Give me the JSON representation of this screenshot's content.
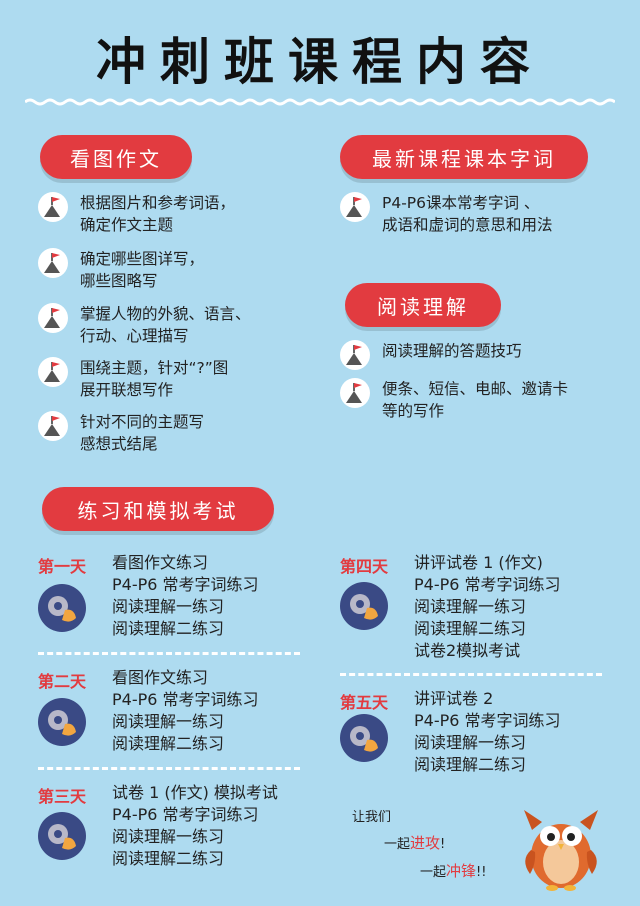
{
  "title": "冲刺班课程内容",
  "sections": {
    "writing": {
      "heading": "看图作文",
      "items": [
        [
          "根据图片和参考词语，",
          "确定作文主题"
        ],
        [
          "确定哪些图详写，",
          "哪些图略写"
        ],
        [
          "掌握人物的外貌、语言、",
          "行动、心理描写"
        ],
        [
          "围绕主题，针对“?”图",
          "展开联想写作"
        ],
        [
          "针对不同的主题写",
          "感想式结尾"
        ]
      ]
    },
    "vocab": {
      "heading": "最新课程课本字词",
      "items": [
        [
          "P4-P6课本常考字词 、",
          "成语和虚词的意思和用法"
        ]
      ]
    },
    "reading": {
      "heading": "阅读理解",
      "items": [
        [
          "阅读理解的答题技巧"
        ],
        [
          "便条、短信、电邮、邀请卡",
          "等的写作"
        ]
      ]
    },
    "practice": {
      "heading": "练习和模拟考试"
    }
  },
  "days": [
    {
      "label": "第一天",
      "lines": [
        "看图作文练习",
        "P4-P6 常考字词练习",
        "阅读理解一练习",
        "阅读理解二练习"
      ]
    },
    {
      "label": "第二天",
      "lines": [
        "看图作文练习",
        "P4-P6 常考字词练习",
        "阅读理解一练习",
        "阅读理解二练习"
      ]
    },
    {
      "label": "第三天",
      "lines": [
        "试卷 1 (作文) 模拟考试",
        "P4-P6 常考字词练习",
        "阅读理解一练习",
        "阅读理解二练习"
      ]
    },
    {
      "label": "第四天",
      "lines": [
        "讲评试卷 1 (作文)",
        "P4-P6 常考字词练习",
        "阅读理解一练习",
        "阅读理解二练习",
        "试卷2模拟考试"
      ]
    },
    {
      "label": "第五天",
      "lines": [
        "讲评试卷 2",
        "P4-P6 常考字词练习",
        "阅读理解一练习",
        "阅读理解二练习"
      ]
    }
  ],
  "cheer": {
    "line1": "让我们",
    "line2_pre": "一起",
    "line2_red": "进攻",
    "line2_post": "!",
    "line3_pre": "一起",
    "line3_red": "冲锋",
    "line3_post": "!!"
  },
  "colors": {
    "background": "#aedbf0",
    "accent": "#e23b40",
    "icon_bg": "#3a4a85"
  }
}
